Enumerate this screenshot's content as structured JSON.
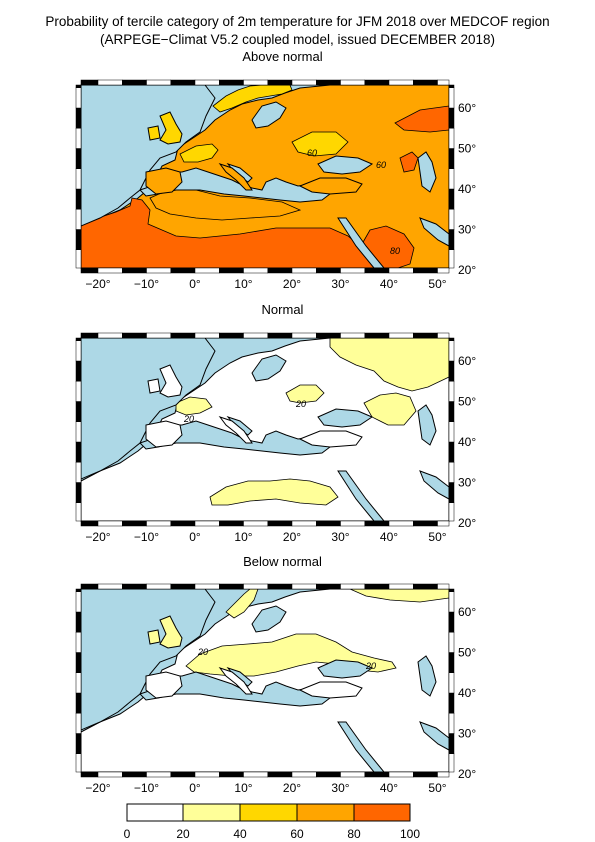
{
  "title": {
    "line1": "Probability of tercile category of 2m temperature for JFM 2018 over MEDCOF region",
    "line2": "(ARPEGE−Climat V5.2 coupled model, issued DECEMBER  2018)"
  },
  "colors": {
    "sea": "#add8e6",
    "land": "#ffffff",
    "c20_40": "#ffff99",
    "c40_60": "#ffd700",
    "c60_80": "#ffa500",
    "c80_100": "#ff6600"
  },
  "axes": {
    "lon_labels": [
      "−20°",
      "−10°",
      "0°",
      "10°",
      "20°",
      "30°",
      "40°",
      "50°"
    ],
    "lat_labels": [
      "60°",
      "50°",
      "40°",
      "30°",
      "20°"
    ]
  },
  "panels": [
    {
      "title": "Above normal",
      "contour_labels": [
        "60",
        "60",
        "80"
      ]
    },
    {
      "title": "Normal",
      "contour_labels": [
        "20",
        "20"
      ]
    },
    {
      "title": "Below normal",
      "contour_labels": [
        "20",
        "20"
      ]
    }
  ],
  "colorbar": {
    "ticks": [
      "0",
      "20",
      "40",
      "60",
      "80",
      "100"
    ]
  }
}
